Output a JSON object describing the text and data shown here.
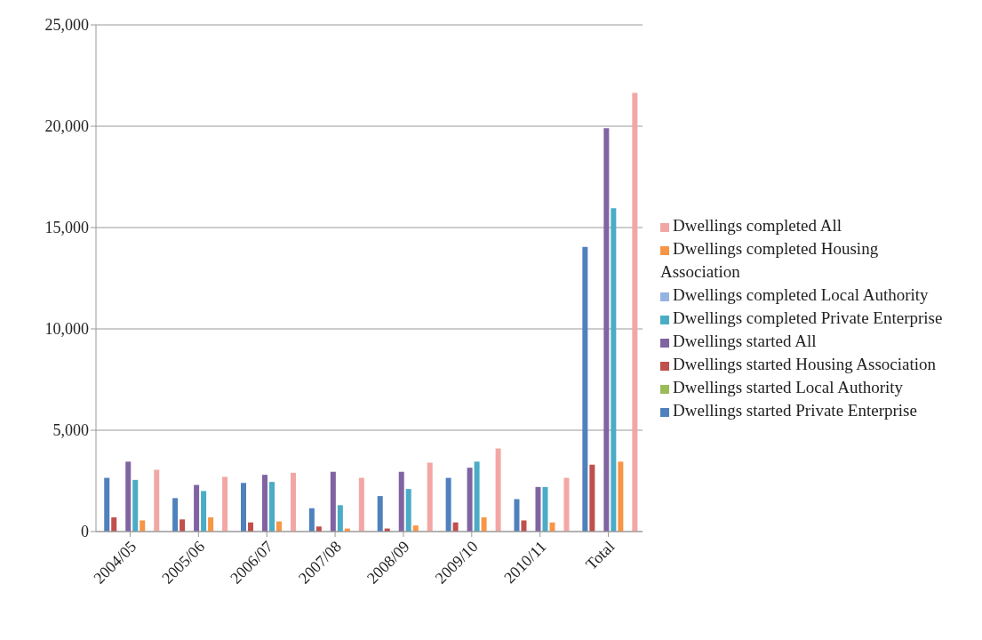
{
  "chart_data": {
    "type": "bar",
    "categories": [
      "2004/05",
      "2005/06",
      "2006/07",
      "2007/08",
      "2008/09",
      "2009/10",
      "2010/11",
      "Total"
    ],
    "series": [
      {
        "name": "Dwellings started Private Enterprise",
        "color": "#4f81bd",
        "values": [
          2650,
          1650,
          2400,
          1150,
          1750,
          2650,
          1600,
          14050
        ]
      },
      {
        "name": "Dwellings started Housing Association",
        "color": "#c0504d",
        "values": [
          700,
          600,
          450,
          250,
          150,
          450,
          550,
          3300
        ]
      },
      {
        "name": "Dwellings started Local Authority",
        "color": "#9bbb59",
        "values": [
          0,
          0,
          0,
          0,
          0,
          0,
          0,
          0
        ]
      },
      {
        "name": "Dwellings started All",
        "color": "#8064a2",
        "values": [
          3450,
          2300,
          2800,
          2950,
          2950,
          3150,
          2200,
          19900
        ]
      },
      {
        "name": "Dwellings completed Private Enterprise",
        "color": "#4bacc6",
        "values": [
          2550,
          2000,
          2450,
          1300,
          2100,
          3450,
          2200,
          15950
        ]
      },
      {
        "name": "Dwellings completed Housing Association",
        "color": "#f79646",
        "values": [
          550,
          700,
          500,
          150,
          300,
          700,
          450,
          3450
        ]
      },
      {
        "name": "Dwellings completed Local Authority",
        "color": "#95b3e0",
        "values": [
          0,
          0,
          0,
          0,
          0,
          0,
          0,
          0
        ]
      },
      {
        "name": "Dwellings completed All",
        "color": "#f2a7a4",
        "values": [
          3050,
          2700,
          2900,
          2650,
          3400,
          4100,
          2650,
          21650
        ]
      }
    ],
    "ylim": [
      0,
      25000
    ],
    "yticks": [
      {
        "value": 0,
        "label": "0"
      },
      {
        "value": 5000,
        "label": "5,000"
      },
      {
        "value": 10000,
        "label": "10,000"
      },
      {
        "value": 15000,
        "label": "15,000"
      },
      {
        "value": 20000,
        "label": "20,000"
      },
      {
        "value": 25000,
        "label": "25,000"
      }
    ],
    "grid": "y",
    "legend": "right"
  }
}
